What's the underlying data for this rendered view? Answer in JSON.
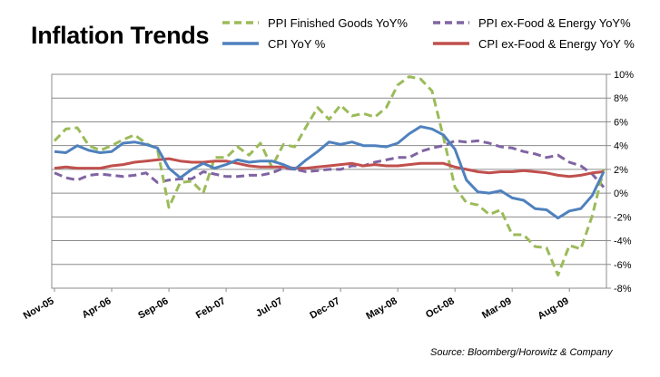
{
  "chart_data": {
    "type": "line",
    "title": "Inflation Trends",
    "xlabel": "",
    "ylabel": "",
    "x_tick_labels": [
      "Nov-05",
      "Apr-06",
      "Sep-06",
      "Feb-07",
      "Jul-07",
      "Dec-07",
      "May-08",
      "Oct-08",
      "Mar-09",
      "Aug-09"
    ],
    "y_tick_labels": [
      "10%",
      "8%",
      "6%",
      "4%",
      "2%",
      "0%",
      "-2%",
      "-4%",
      "-6%",
      "-8%"
    ],
    "ylim": [
      -8,
      10
    ],
    "y_unit": "%",
    "grid": "horizontal",
    "legend_placement": "top",
    "months": [
      "Nov-05",
      "Dec-05",
      "Jan-06",
      "Feb-06",
      "Mar-06",
      "Apr-06",
      "May-06",
      "Jun-06",
      "Jul-06",
      "Aug-06",
      "Sep-06",
      "Oct-06",
      "Nov-06",
      "Dec-06",
      "Jan-07",
      "Feb-07",
      "Mar-07",
      "Apr-07",
      "May-07",
      "Jun-07",
      "Jul-07",
      "Aug-07",
      "Sep-07",
      "Oct-07",
      "Nov-07",
      "Dec-07",
      "Jan-08",
      "Feb-08",
      "Mar-08",
      "Apr-08",
      "May-08",
      "Jun-08",
      "Jul-08",
      "Aug-08",
      "Sep-08",
      "Oct-08",
      "Nov-08",
      "Dec-08",
      "Jan-09",
      "Feb-09",
      "Mar-09",
      "Apr-09",
      "May-09",
      "Jun-09",
      "Jul-09",
      "Aug-09",
      "Sep-09",
      "Oct-09",
      "Nov-09"
    ],
    "series": [
      {
        "name": "PPI Finished Goods YoY%",
        "color": "#9bbb59",
        "dash": "dashed",
        "values": [
          4.4,
          5.4,
          5.5,
          4.0,
          3.6,
          4.0,
          4.5,
          4.9,
          4.2,
          3.7,
          -1.2,
          0.9,
          1.0,
          0.0,
          3.0,
          3.0,
          3.9,
          3.2,
          4.2,
          2.2,
          4.1,
          3.9,
          5.6,
          7.2,
          6.2,
          7.4,
          6.5,
          6.7,
          6.4,
          7.2,
          9.1,
          9.8,
          9.6,
          8.6,
          4.7,
          0.5,
          -0.8,
          -1.0,
          -1.8,
          -1.4,
          -3.5,
          -3.5,
          -4.5,
          -4.6,
          -6.9,
          -4.4,
          -4.7,
          -1.9,
          2.0
        ]
      },
      {
        "name": "PPI ex-Food & Energy YoY%",
        "color": "#8064a2",
        "dash": "dashed",
        "values": [
          1.7,
          1.3,
          1.1,
          1.5,
          1.6,
          1.5,
          1.4,
          1.5,
          1.7,
          0.9,
          1.1,
          1.2,
          1.2,
          1.8,
          1.6,
          1.4,
          1.4,
          1.5,
          1.5,
          1.7,
          2.1,
          2.0,
          1.8,
          1.9,
          2.0,
          2.0,
          2.3,
          2.3,
          2.6,
          2.8,
          3.0,
          3.0,
          3.5,
          3.8,
          4.0,
          4.4,
          4.3,
          4.4,
          4.2,
          3.9,
          3.8,
          3.5,
          3.3,
          3.0,
          3.2,
          2.6,
          2.3,
          1.6,
          0.5
        ]
      },
      {
        "name": "CPI YoY %",
        "color": "#4f81bd",
        "dash": "solid",
        "values": [
          3.5,
          3.4,
          4.0,
          3.6,
          3.4,
          3.5,
          4.2,
          4.3,
          4.1,
          3.8,
          2.1,
          1.3,
          2.0,
          2.5,
          2.1,
          2.4,
          2.8,
          2.6,
          2.7,
          2.7,
          2.4,
          2.0,
          2.8,
          3.5,
          4.3,
          4.1,
          4.3,
          4.0,
          4.0,
          3.9,
          4.2,
          5.0,
          5.6,
          5.4,
          4.9,
          3.7,
          1.1,
          0.1,
          0.0,
          0.2,
          -0.4,
          -0.6,
          -1.3,
          -1.4,
          -2.1,
          -1.5,
          -1.3,
          -0.2,
          1.8
        ]
      },
      {
        "name": "CPI ex-Food & Energy YoY %",
        "color": "#c0504d",
        "dash": "solid",
        "values": [
          2.1,
          2.2,
          2.1,
          2.1,
          2.1,
          2.3,
          2.4,
          2.6,
          2.7,
          2.8,
          2.9,
          2.7,
          2.6,
          2.6,
          2.7,
          2.7,
          2.5,
          2.3,
          2.2,
          2.2,
          2.2,
          2.1,
          2.1,
          2.2,
          2.3,
          2.4,
          2.5,
          2.3,
          2.4,
          2.3,
          2.3,
          2.4,
          2.5,
          2.5,
          2.5,
          2.2,
          2.0,
          1.8,
          1.7,
          1.8,
          1.8,
          1.9,
          1.8,
          1.7,
          1.5,
          1.4,
          1.5,
          1.7,
          1.8
        ]
      }
    ]
  },
  "source": "Source: Bloomberg/Horowitz & Company"
}
